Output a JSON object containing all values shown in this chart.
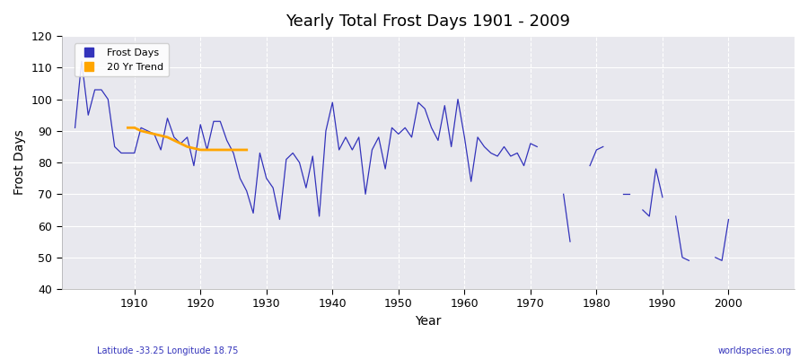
{
  "title": "Yearly Total Frost Days 1901 - 2009",
  "xlabel": "Year",
  "ylabel": "Frost Days",
  "subtitle": "Latitude -33.25 Longitude 18.75",
  "watermark": "worldspecies.org",
  "ylim": [
    40,
    120
  ],
  "yticks": [
    40,
    50,
    60,
    70,
    80,
    90,
    100,
    110,
    120
  ],
  "xticks": [
    1910,
    1920,
    1930,
    1940,
    1950,
    1960,
    1970,
    1980,
    1990,
    2000
  ],
  "xlim": [
    1899,
    2010
  ],
  "line_color": "#3333bb",
  "trend_color": "#FFA500",
  "plot_bg_color": "#e8e8ee",
  "fig_bg_color": "#ffffff",
  "frost_days": {
    "1901": 91,
    "1902": 112,
    "1903": 95,
    "1904": 103,
    "1905": 103,
    "1906": 100,
    "1907": 85,
    "1908": 83,
    "1909": 83,
    "1910": 83,
    "1911": 91,
    "1912": 90,
    "1913": 89,
    "1914": 84,
    "1915": 94,
    "1916": 88,
    "1917": 86,
    "1918": 88,
    "1919": 79,
    "1920": 92,
    "1921": 84,
    "1922": 93,
    "1923": 93,
    "1924": 87,
    "1925": 83,
    "1926": 75,
    "1927": 71,
    "1928": 64,
    "1929": 83,
    "1930": 75,
    "1931": 72,
    "1932": 62,
    "1933": 81,
    "1934": 83,
    "1935": 80,
    "1936": 72,
    "1937": 82,
    "1938": 63,
    "1939": 90,
    "1940": 99,
    "1941": 84,
    "1942": 88,
    "1943": 84,
    "1944": 88,
    "1945": 70,
    "1946": 84,
    "1947": 88,
    "1948": 78,
    "1949": 91,
    "1950": 89,
    "1951": 91,
    "1952": 88,
    "1953": 99,
    "1954": 97,
    "1955": 91,
    "1956": 87,
    "1957": 98,
    "1958": 85,
    "1959": 100,
    "1960": 88,
    "1961": 74,
    "1962": 88,
    "1963": 85,
    "1964": 83,
    "1965": 82,
    "1966": 85,
    "1967": 82,
    "1968": 83,
    "1969": 79,
    "1970": 86,
    "1971": 85,
    "1975": 70,
    "1976": 55,
    "1979": 79,
    "1980": 84,
    "1981": 85,
    "1984": 70,
    "1985": 70,
    "1987": 65,
    "1988": 63,
    "1989": 78,
    "1990": 69,
    "1992": 63,
    "1993": 50,
    "1994": 49,
    "1998": 50,
    "1999": 49,
    "2000": 62
  },
  "trend_data": [
    [
      1909,
      91
    ],
    [
      1910,
      91
    ],
    [
      1911,
      90
    ],
    [
      1912,
      89.5
    ],
    [
      1913,
      89
    ],
    [
      1914,
      88.5
    ],
    [
      1915,
      88
    ],
    [
      1916,
      87
    ],
    [
      1917,
      86
    ],
    [
      1918,
      85
    ],
    [
      1919,
      84.5
    ],
    [
      1920,
      84
    ],
    [
      1921,
      84
    ],
    [
      1922,
      84
    ],
    [
      1923,
      84
    ],
    [
      1924,
      84
    ],
    [
      1925,
      84
    ],
    [
      1926,
      84
    ],
    [
      1927,
      84
    ]
  ]
}
